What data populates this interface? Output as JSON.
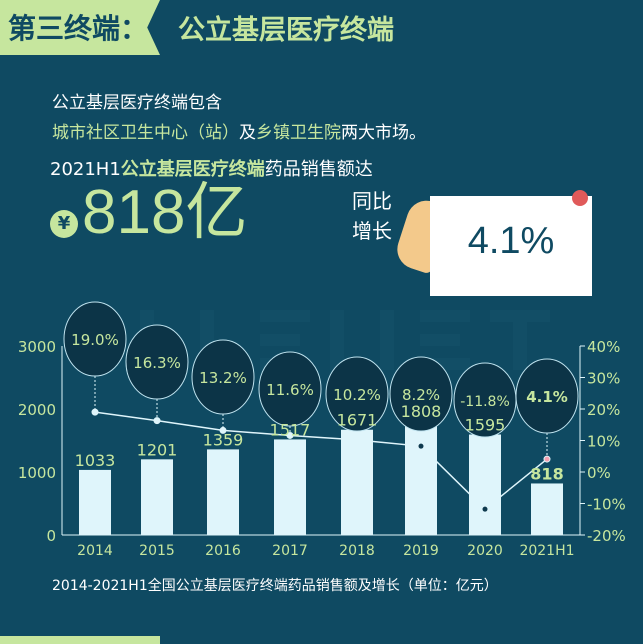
{
  "header": {
    "tag": "第三终端：",
    "title": "公立基层医疗终端"
  },
  "intro": {
    "line1": "公立基层医疗终端包含",
    "line2_a": "城市社区卫生中心（站）",
    "line2_b": "及",
    "line2_c": "乡镇卫生院",
    "line2_d": "两大市场。"
  },
  "sales": {
    "prefix": "2021H1",
    "highlight": "公立基层医疗终端",
    "suffix": "药品销售额达",
    "currency": "¥",
    "amount": "818亿",
    "yoy_label1": "同比",
    "yoy_label2": "增长",
    "yoy_value": "4.1%"
  },
  "colors": {
    "background": "#0f4a62",
    "accent": "#c6e69e",
    "bar": "#dff5fb",
    "line": "#dff5fb"
  },
  "chart_data": {
    "type": "bar+line",
    "categories": [
      "2014",
      "2015",
      "2016",
      "2017",
      "2018",
      "2019",
      "2020",
      "2021H1"
    ],
    "series": [
      {
        "type": "bar",
        "axis": "left",
        "values": [
          1033,
          1201,
          1359,
          1517,
          1671,
          1808,
          1595,
          818
        ]
      },
      {
        "type": "line",
        "axis": "right",
        "values": [
          19.0,
          16.3,
          13.2,
          11.6,
          10.2,
          8.2,
          -11.8,
          4.1
        ]
      }
    ],
    "growth_labels": [
      "19.0%",
      "16.3%",
      "13.2%",
      "11.6%",
      "10.2%",
      "8.2%",
      "-11.8%",
      "4.1%"
    ],
    "left_ticks": [
      "0",
      "1000",
      "2000",
      "3000"
    ],
    "right_ticks": [
      "-20%",
      "-10%",
      "0%",
      "10%",
      "20%",
      "30%",
      "40%"
    ],
    "ylim_left": [
      0,
      3000
    ],
    "ylim_right": [
      -20,
      40
    ],
    "caption": "2014-2021H1全国公立基层医疗终端药品销售额及增长（单位：亿元）",
    "watermark": "MENET"
  }
}
